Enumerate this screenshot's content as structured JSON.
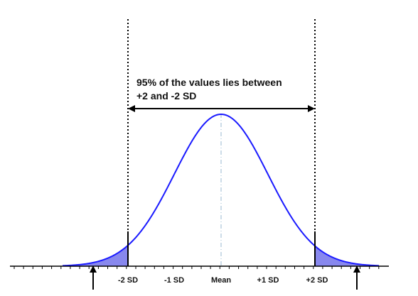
{
  "annotation": {
    "line1": "95% of the values lies between",
    "line2": "+2 and -2 SD"
  },
  "axis_labels": {
    "minus2": "-2 SD",
    "minus1": "-1 SD",
    "mean": "Mean",
    "plus1": "+1 SD",
    "plus2": "+2 SD"
  },
  "colors": {
    "curve": "#1a1aff",
    "tail_fill": "#8888ee",
    "mean_line": "#a9c4d9",
    "ink": "#000000"
  }
}
